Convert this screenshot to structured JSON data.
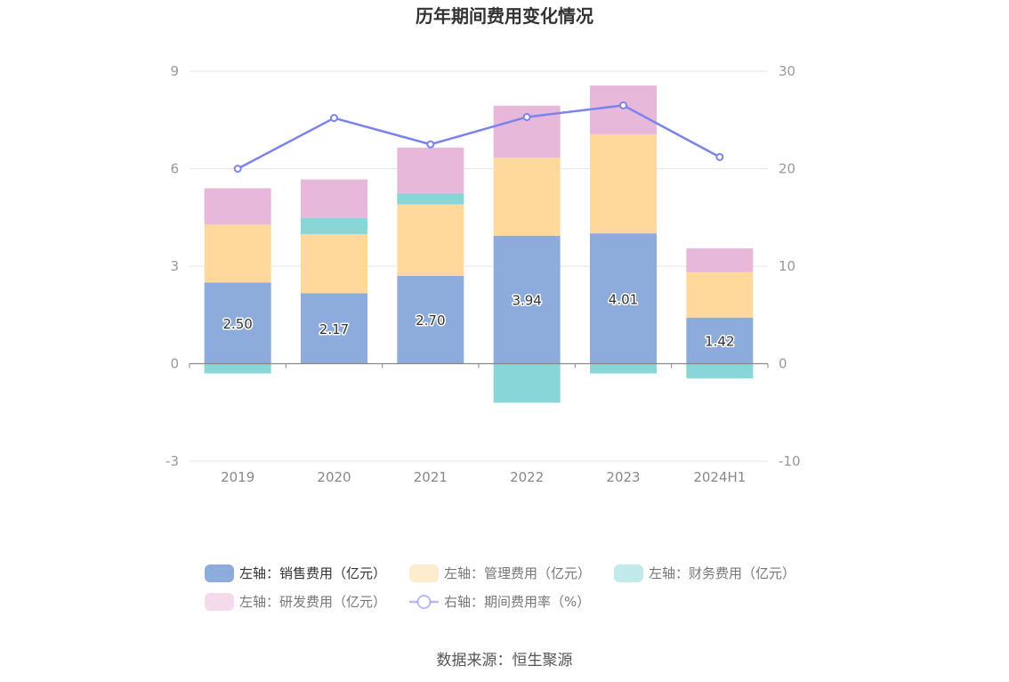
{
  "chart_data": {
    "type": "bar",
    "title": "历年期间费用变化情况",
    "categories": [
      "2019",
      "2020",
      "2021",
      "2022",
      "2023",
      "2024H1"
    ],
    "left_axis": {
      "min": -3,
      "max": 9,
      "ticks": [
        -3,
        0,
        3,
        6,
        9
      ]
    },
    "right_axis": {
      "min": -10,
      "max": 30,
      "ticks": [
        -10,
        0,
        10,
        20,
        30
      ]
    },
    "grid": true,
    "legend_position": "bottom",
    "series": [
      {
        "name": "左轴：销售费用（亿元）",
        "type": "bar",
        "axis": "left",
        "color": "#8eacdb",
        "values": [
          2.5,
          2.17,
          2.7,
          3.94,
          4.01,
          1.42
        ],
        "labels": [
          "2.50",
          "2.17",
          "2.70",
          "3.94",
          "4.01",
          "1.42"
        ]
      },
      {
        "name": "左轴：管理费用（亿元）",
        "type": "bar",
        "axis": "left",
        "color": "#ffd99b",
        "values": [
          1.78,
          1.82,
          2.2,
          2.4,
          3.05,
          1.4
        ]
      },
      {
        "name": "左轴：财务费用（亿元）",
        "type": "bar",
        "axis": "left",
        "color": "#88d6d8",
        "values": [
          -0.3,
          0.5,
          0.35,
          -1.2,
          -0.3,
          -0.45
        ]
      },
      {
        "name": "左轴：研发费用（亿元）",
        "type": "bar",
        "axis": "left",
        "color": "#e8b8da",
        "values": [
          1.12,
          1.18,
          1.4,
          1.6,
          1.5,
          0.73
        ]
      },
      {
        "name": "右轴：期间费用率（%）",
        "type": "line",
        "axis": "right",
        "color": "#7b83ec",
        "values": [
          20.0,
          25.2,
          22.5,
          25.3,
          26.5,
          21.2
        ]
      }
    ]
  },
  "legend_state": [
    true,
    false,
    false,
    false,
    false
  ],
  "source": "数据来源：恒生聚源"
}
